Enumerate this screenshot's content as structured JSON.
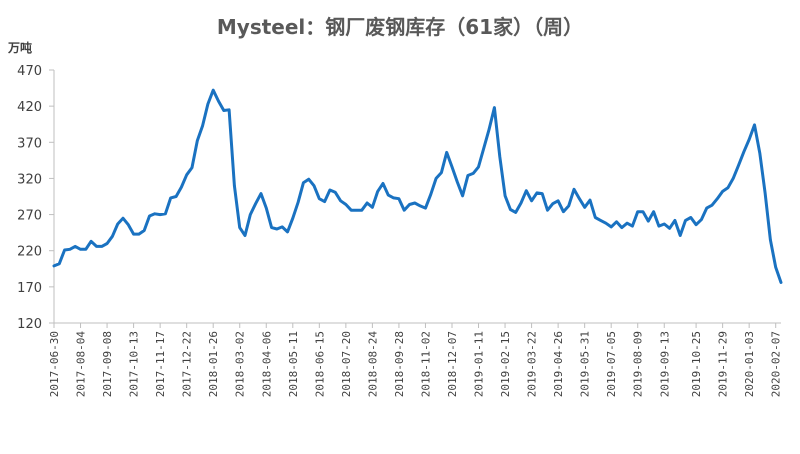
{
  "chart_data": {
    "type": "line",
    "title": "Mysteel：钢厂废钢库存（61家）（周）",
    "ylabel": "万吨",
    "xlabel": "",
    "ylim": [
      120,
      470
    ],
    "yticks": [
      120,
      170,
      220,
      270,
      320,
      370,
      420,
      470
    ],
    "grid": false,
    "legend": "none",
    "line_color": "#1a72c1",
    "xtick_labels": [
      "2017-06-30",
      "2017-08-04",
      "2017-09-08",
      "2017-10-13",
      "2017-11-17",
      "2017-12-22",
      "2018-01-26",
      "2018-03-02",
      "2018-04-06",
      "2018-05-11",
      "2018-06-15",
      "2018-07-20",
      "2018-08-24",
      "2018-09-28",
      "2018-11-02",
      "2018-12-07",
      "2019-01-11",
      "2019-02-15",
      "2019-03-22",
      "2019-04-26",
      "2019-05-31",
      "2019-07-05",
      "2019-08-09",
      "2019-09-13",
      "2019-10-25",
      "2019-11-29",
      "2020-01-03",
      "2020-02-07"
    ],
    "series": [
      {
        "name": "",
        "x": [
          "2017-06-30",
          "2017-07-07",
          "2017-07-14",
          "2017-07-21",
          "2017-07-28",
          "2017-08-04",
          "2017-08-11",
          "2017-08-18",
          "2017-08-25",
          "2017-09-01",
          "2017-09-08",
          "2017-09-15",
          "2017-09-22",
          "2017-09-29",
          "2017-10-06",
          "2017-10-13",
          "2017-10-20",
          "2017-10-27",
          "2017-11-03",
          "2017-11-10",
          "2017-11-17",
          "2017-11-24",
          "2017-12-01",
          "2017-12-08",
          "2017-12-15",
          "2017-12-22",
          "2017-12-29",
          "2018-01-05",
          "2018-01-12",
          "2018-01-19",
          "2018-01-26",
          "2018-02-02",
          "2018-02-09",
          "2018-02-16",
          "2018-02-23",
          "2018-03-02",
          "2018-03-09",
          "2018-03-16",
          "2018-03-23",
          "2018-03-30",
          "2018-04-06",
          "2018-04-13",
          "2018-04-20",
          "2018-04-27",
          "2018-05-04",
          "2018-05-11",
          "2018-05-18",
          "2018-05-25",
          "2018-06-01",
          "2018-06-08",
          "2018-06-15",
          "2018-06-22",
          "2018-06-29",
          "2018-07-06",
          "2018-07-13",
          "2018-07-20",
          "2018-07-27",
          "2018-08-03",
          "2018-08-10",
          "2018-08-17",
          "2018-08-24",
          "2018-08-31",
          "2018-09-07",
          "2018-09-14",
          "2018-09-21",
          "2018-09-28",
          "2018-10-05",
          "2018-10-12",
          "2018-10-19",
          "2018-10-26",
          "2018-11-02",
          "2018-11-09",
          "2018-11-16",
          "2018-11-23",
          "2018-11-30",
          "2018-12-07",
          "2018-12-14",
          "2018-12-21",
          "2018-12-28",
          "2019-01-04",
          "2019-01-11",
          "2019-01-18",
          "2019-01-25",
          "2019-02-01",
          "2019-02-08",
          "2019-02-15",
          "2019-02-22",
          "2019-03-01",
          "2019-03-08",
          "2019-03-15",
          "2019-03-22",
          "2019-03-29",
          "2019-04-05",
          "2019-04-12",
          "2019-04-19",
          "2019-04-26",
          "2019-05-03",
          "2019-05-10",
          "2019-05-17",
          "2019-05-24",
          "2019-05-31",
          "2019-06-07",
          "2019-06-14",
          "2019-06-21",
          "2019-06-28",
          "2019-07-05",
          "2019-07-12",
          "2019-07-19",
          "2019-07-26",
          "2019-08-02",
          "2019-08-09",
          "2019-08-16",
          "2019-08-23",
          "2019-08-30",
          "2019-09-06",
          "2019-09-13",
          "2019-09-20",
          "2019-09-27",
          "2019-10-04",
          "2019-10-11",
          "2019-10-18",
          "2019-10-25",
          "2019-11-01",
          "2019-11-08",
          "2019-11-15",
          "2019-11-22",
          "2019-11-29",
          "2019-12-06",
          "2019-12-13",
          "2019-12-20",
          "2019-12-27",
          "2020-01-03",
          "2020-01-10",
          "2020-01-17",
          "2020-01-24",
          "2020-01-31",
          "2020-02-07",
          "2020-02-14"
        ],
        "values": [
          199,
          202,
          221,
          222,
          226,
          222,
          222,
          233,
          226,
          226,
          230,
          240,
          257,
          265,
          256,
          243,
          243,
          248,
          268,
          271,
          270,
          271,
          293,
          295,
          308,
          325,
          335,
          372,
          393,
          423,
          442,
          427,
          414,
          415,
          310,
          252,
          241,
          270,
          285,
          299,
          279,
          252,
          250,
          253,
          246,
          265,
          287,
          314,
          319,
          310,
          292,
          288,
          304,
          301,
          289,
          284,
          276,
          276,
          276,
          286,
          280,
          302,
          313,
          297,
          293,
          292,
          276,
          284,
          286,
          282,
          279,
          298,
          320,
          328,
          356,
          336,
          315,
          296,
          324,
          327,
          336,
          362,
          388,
          418,
          350,
          296,
          277,
          273,
          286,
          303,
          289,
          300,
          299,
          276,
          285,
          289,
          274,
          282,
          305,
          292,
          280,
          290,
          266,
          262,
          258,
          253,
          260,
          252,
          258,
          254,
          274,
          274,
          261,
          274,
          254,
          257,
          251,
          262,
          241,
          262,
          266,
          256,
          263,
          279,
          283,
          292,
          302,
          307,
          320,
          338,
          357,
          374,
          394,
          355,
          300,
          235,
          197,
          176
        ]
      }
    ]
  }
}
